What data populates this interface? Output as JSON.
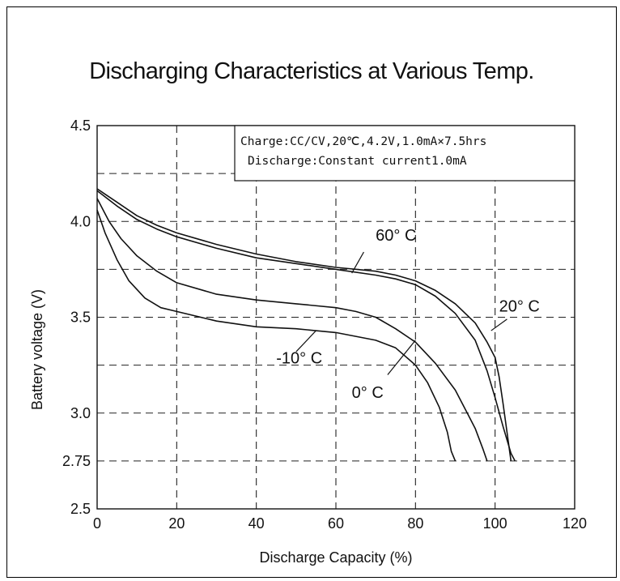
{
  "chart_data": {
    "type": "line",
    "title": "Discharging Characteristics at Various Temp.",
    "xlabel": "Discharge Capacity (%)",
    "ylabel": "Battery voltage (V)",
    "xlim": [
      0,
      120
    ],
    "ylim": [
      2.5,
      4.5
    ],
    "x_ticks": [
      "0",
      "20",
      "40",
      "60",
      "80",
      "100",
      "120"
    ],
    "y_ticks": [
      "2.5",
      "2.75",
      "3.0",
      "3.5",
      "4.0",
      "4.5"
    ],
    "grid": true,
    "annotation": {
      "line1": "Charge:CC/CV,20℃,4.2V,1.0mA×7.5hrs",
      "line2": "Discharge:Constant current1.0mA"
    },
    "series": [
      {
        "name": "60° C",
        "x": [
          0,
          5,
          10,
          15,
          20,
          30,
          40,
          50,
          60,
          70,
          75,
          80,
          85,
          90,
          95,
          98,
          100,
          102,
          104,
          105
        ],
        "y": [
          4.16,
          4.08,
          4.01,
          3.96,
          3.92,
          3.86,
          3.81,
          3.78,
          3.75,
          3.72,
          3.7,
          3.67,
          3.61,
          3.52,
          3.38,
          3.22,
          3.08,
          2.93,
          2.79,
          2.75
        ]
      },
      {
        "name": "20° C",
        "x": [
          0,
          5,
          10,
          15,
          20,
          30,
          40,
          50,
          60,
          70,
          75,
          80,
          85,
          90,
          95,
          98,
          100,
          101,
          102,
          103,
          104
        ],
        "y": [
          4.17,
          4.1,
          4.03,
          3.98,
          3.94,
          3.88,
          3.83,
          3.79,
          3.76,
          3.74,
          3.72,
          3.69,
          3.64,
          3.57,
          3.47,
          3.37,
          3.29,
          3.19,
          3.05,
          2.9,
          2.75
        ]
      },
      {
        "name": "0° C",
        "x": [
          0,
          3,
          6,
          10,
          15,
          20,
          30,
          40,
          50,
          60,
          65,
          70,
          75,
          80,
          85,
          90,
          93,
          95,
          97,
          98
        ],
        "y": [
          4.12,
          4.0,
          3.91,
          3.82,
          3.74,
          3.68,
          3.62,
          3.59,
          3.57,
          3.55,
          3.53,
          3.5,
          3.44,
          3.37,
          3.26,
          3.12,
          3.0,
          2.92,
          2.81,
          2.75
        ]
      },
      {
        "name": "-10° C",
        "x": [
          0,
          2,
          5,
          8,
          12,
          16,
          20,
          30,
          40,
          50,
          60,
          70,
          75,
          80,
          83,
          86,
          88,
          89,
          90
        ],
        "y": [
          4.06,
          3.94,
          3.8,
          3.69,
          3.6,
          3.55,
          3.53,
          3.48,
          3.45,
          3.44,
          3.42,
          3.38,
          3.34,
          3.25,
          3.16,
          3.03,
          2.9,
          2.8,
          2.75
        ]
      }
    ],
    "series_label_positions": [
      {
        "name": "60° C",
        "tx": 70,
        "ty": 3.9,
        "ax1": 67,
        "ay1": 3.84,
        "ax2": 64,
        "ay2": 3.73
      },
      {
        "name": "20° C",
        "tx": 101,
        "ty": 3.53,
        "ax1": 103,
        "ay1": 3.49,
        "ax2": 99,
        "ay2": 3.43
      },
      {
        "name": "0° C",
        "tx": 64,
        "ty": 3.08,
        "ax1": 73,
        "ay1": 3.2,
        "ax2": 80,
        "ay2": 3.38
      },
      {
        "name": "-10° C",
        "tx": 45,
        "ty": 3.26,
        "ax1": 50,
        "ay1": 3.32,
        "ax2": 55,
        "ay2": 3.43
      }
    ]
  }
}
